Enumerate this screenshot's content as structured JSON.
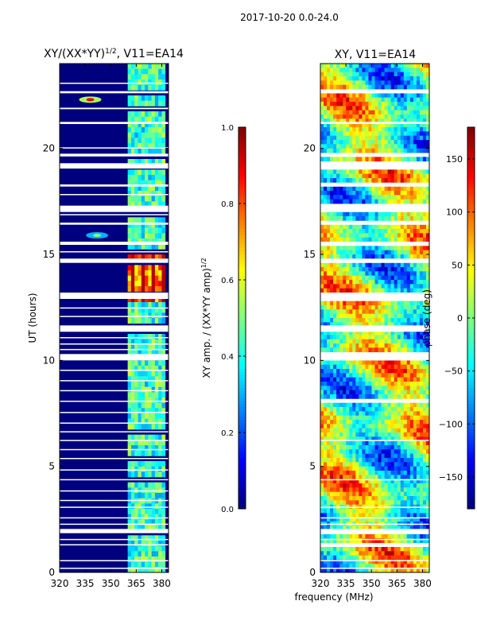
{
  "figure_title": "2017-10-20 0.0-24.0",
  "shared_xlabel": "frequency (MHz)",
  "colors": {
    "background": "#00007f",
    "gap": "#ffffff",
    "jet": [
      "#00007f",
      "#0000ff",
      "#007fff",
      "#00ffff",
      "#7fff7f",
      "#ffff00",
      "#ff7f00",
      "#ff0000",
      "#7f0000"
    ]
  },
  "chart_data": [
    {
      "type": "heatmap",
      "title_main": "XY/(XX*YY)",
      "title_sup": "1/2",
      "title_rest": ", V11=EA14",
      "ylabel": "UT (hours)",
      "xlim": [
        320,
        384
      ],
      "ylim": [
        0,
        24
      ],
      "xticks": [
        320,
        335,
        350,
        365,
        380
      ],
      "yticks": [
        0,
        5,
        10,
        15,
        20
      ],
      "colorbar": {
        "label_main": "XY amp. / (XX*YY amp)",
        "label_sup": "1/2",
        "range": [
          0.0,
          1.0
        ],
        "ticks": [
          "0.0",
          "0.2",
          "0.4",
          "0.6",
          "0.8",
          "1.0"
        ],
        "tick_values": [
          0.0,
          0.2,
          0.4,
          0.6,
          0.8,
          1.0
        ]
      },
      "active_band_mhz": [
        361,
        382
      ],
      "bright_band": {
        "ut": [
          12.8,
          14.9
        ],
        "value": 0.85
      },
      "rfi_spots": [
        {
          "freq": 338,
          "ut": 22.3,
          "value": 0.9
        },
        {
          "freq": 342,
          "ut": 15.9,
          "value": 0.5
        }
      ],
      "flagged_ut": [
        [
          0.18,
          0.22
        ],
        [
          0.55,
          0.58
        ],
        [
          1.28,
          1.33
        ],
        [
          1.55,
          1.58
        ],
        [
          1.85,
          2.05
        ],
        [
          2.25,
          2.3
        ],
        [
          2.55,
          2.6
        ],
        [
          3.05,
          3.1
        ],
        [
          3.38,
          3.42
        ],
        [
          3.82,
          3.87
        ],
        [
          4.35,
          4.4
        ],
        [
          4.82,
          4.86
        ],
        [
          5.35,
          5.4
        ],
        [
          5.78,
          5.82
        ],
        [
          6.2,
          6.25
        ],
        [
          6.62,
          6.66
        ],
        [
          7.02,
          7.07
        ],
        [
          7.52,
          7.57
        ],
        [
          8.05,
          8.1
        ],
        [
          8.55,
          8.6
        ],
        [
          9.02,
          9.07
        ],
        [
          9.52,
          9.56
        ],
        [
          10.0,
          10.3
        ],
        [
          10.5,
          10.54
        ],
        [
          10.75,
          10.8
        ],
        [
          11.05,
          11.1
        ],
        [
          11.35,
          11.65
        ],
        [
          12.05,
          12.1
        ],
        [
          12.45,
          12.5
        ],
        [
          12.9,
          13.2
        ],
        [
          14.6,
          14.8
        ],
        [
          15.1,
          15.15
        ],
        [
          15.45,
          15.6
        ],
        [
          16.4,
          16.5
        ],
        [
          16.85,
          16.9
        ],
        [
          17.0,
          17.3
        ],
        [
          17.8,
          17.85
        ],
        [
          18.2,
          18.3
        ],
        [
          19.05,
          19.3
        ],
        [
          19.62,
          19.75
        ],
        [
          20.0,
          20.05
        ],
        [
          21.15,
          21.25
        ],
        [
          21.85,
          21.92
        ],
        [
          22.6,
          22.7
        ],
        [
          23.05,
          23.1
        ]
      ]
    },
    {
      "type": "heatmap",
      "title": "XY, V11=EA14",
      "ylabel": "",
      "xlim": [
        320,
        384
      ],
      "ylim": [
        0,
        24
      ],
      "xticks": [
        320,
        335,
        350,
        365,
        380
      ],
      "yticks": [
        0,
        5,
        10,
        15,
        20
      ],
      "colorbar": {
        "label": "phase (deg)",
        "range": [
          -180,
          180
        ],
        "ticks": [
          "−150",
          "−100",
          "−50",
          "0",
          "50",
          "100",
          "150"
        ],
        "tick_values": [
          -150,
          -100,
          -50,
          0,
          50,
          100,
          150
        ]
      },
      "flagged_ut": [
        [
          0.18,
          0.22
        ],
        [
          0.55,
          0.58
        ],
        [
          1.28,
          1.33
        ],
        [
          1.55,
          1.58
        ],
        [
          1.85,
          2.05
        ],
        [
          2.25,
          2.3
        ],
        [
          2.55,
          2.6
        ],
        [
          3.05,
          3.1
        ],
        [
          4.35,
          4.4
        ],
        [
          6.2,
          6.25
        ],
        [
          8.05,
          8.1
        ],
        [
          10.0,
          10.3
        ],
        [
          11.35,
          11.65
        ],
        [
          12.9,
          13.2
        ],
        [
          14.6,
          14.8
        ],
        [
          15.45,
          15.6
        ],
        [
          16.4,
          16.5
        ],
        [
          17.0,
          17.3
        ],
        [
          18.2,
          18.3
        ],
        [
          19.05,
          19.3
        ],
        [
          19.62,
          19.75
        ],
        [
          21.15,
          21.25
        ],
        [
          22.6,
          22.7
        ]
      ]
    }
  ]
}
